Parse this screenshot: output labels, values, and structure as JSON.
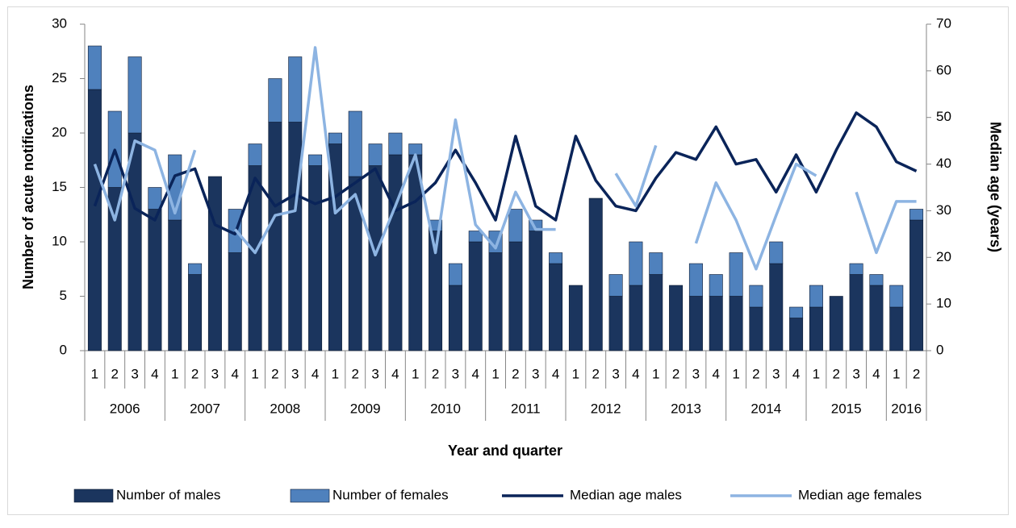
{
  "chart_data": {
    "type": "bar",
    "stacked": true,
    "y_label": "Number of acute notifications",
    "y2_label": "Median age (years)",
    "x_label": "Year and quarter",
    "categories": [
      "1",
      "2",
      "3",
      "4",
      "1",
      "2",
      "3",
      "4",
      "1",
      "2",
      "3",
      "4",
      "1",
      "2",
      "3",
      "4",
      "1",
      "2",
      "3",
      "4",
      "1",
      "2",
      "3",
      "4",
      "1",
      "2",
      "3",
      "4",
      "1",
      "2",
      "3",
      "4",
      "1",
      "2",
      "3",
      "4",
      "1",
      "2",
      "3",
      "4",
      "1",
      "2"
    ],
    "groups": [
      "2006",
      "2007",
      "2008",
      "2009",
      "2010",
      "2011",
      "2012",
      "2013",
      "2014",
      "2015",
      "2016"
    ],
    "ylim": [
      0,
      30
    ],
    "yticks": [
      0,
      5,
      10,
      15,
      20,
      25,
      30
    ],
    "y2lim": [
      0,
      70
    ],
    "y2ticks": [
      0,
      10,
      20,
      30,
      40,
      50,
      60,
      70
    ],
    "legend": "bottom",
    "grid": false,
    "series": [
      {
        "name": "Number of males",
        "type": "bar",
        "color": "#1b355e",
        "values": [
          24,
          15,
          20,
          13,
          12,
          7,
          16,
          9,
          17,
          21,
          21,
          17,
          19,
          16,
          17,
          18,
          18,
          11,
          6,
          10,
          9,
          10,
          11,
          8,
          6,
          14,
          5,
          6,
          7,
          6,
          5,
          5,
          5,
          4,
          8,
          3,
          4,
          5,
          7,
          6,
          4,
          12
        ]
      },
      {
        "name": "Number of females",
        "type": "bar",
        "color": "#4f81bd",
        "values": [
          4,
          7,
          7,
          2,
          6,
          1,
          0,
          4,
          2,
          4,
          6,
          1,
          1,
          6,
          2,
          2,
          1,
          1,
          2,
          1,
          2,
          3,
          1,
          1,
          0,
          0,
          2,
          4,
          2,
          0,
          3,
          2,
          4,
          2,
          2,
          1,
          2,
          0,
          1,
          1,
          2,
          1
        ]
      },
      {
        "name": "Median age males",
        "type": "line",
        "axis": "y2",
        "color": "#0a2459",
        "values": [
          31,
          43,
          30.5,
          28,
          37.5,
          39,
          27,
          25,
          37,
          31,
          33.5,
          31.5,
          33,
          36,
          39,
          30,
          32,
          36,
          43,
          36,
          28,
          46,
          31,
          28,
          46,
          36.5,
          31,
          30,
          37,
          42.5,
          41,
          48,
          40,
          41,
          34,
          42,
          34,
          43,
          51,
          48,
          40.5,
          38.5
        ]
      },
      {
        "name": "Median age females",
        "type": "line",
        "axis": "y2",
        "color": "#8db4e2",
        "values": [
          40,
          28,
          45,
          43,
          29.5,
          43,
          null,
          26,
          21,
          29,
          30,
          65,
          29.5,
          33.5,
          20.5,
          31,
          42,
          21,
          49.5,
          27,
          22,
          34,
          26,
          26,
          null,
          null,
          38,
          31,
          44,
          null,
          23,
          36,
          28,
          17.5,
          29,
          40,
          37.5,
          null,
          34,
          21,
          32,
          32
        ]
      }
    ]
  }
}
